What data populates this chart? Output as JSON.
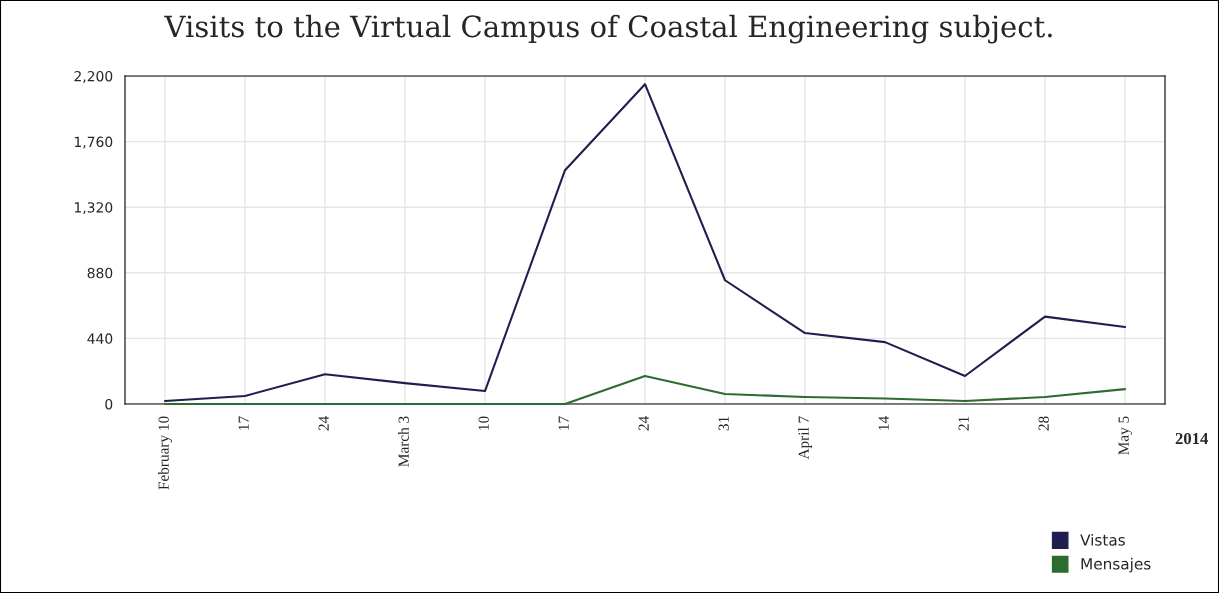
{
  "chart_data": {
    "type": "line",
    "title": "Visits to the Virtual Campus of Coastal Engineering subject.",
    "categories": [
      "February 10",
      "17",
      "24",
      "March 3",
      "10",
      "17",
      "24",
      "31",
      "April 7",
      "14",
      "21",
      "28",
      "May 5"
    ],
    "series": [
      {
        "name": "Vistas",
        "color": "#1f1f4f",
        "values": [
          20,
          54,
          200,
          140,
          87,
          1568,
          2145,
          830,
          476,
          415,
          188,
          586,
          516
        ]
      },
      {
        "name": "Mensajes",
        "color": "#2e6b2e",
        "values": [
          0,
          0,
          0,
          0,
          0,
          0,
          188,
          67,
          47,
          37,
          20,
          47,
          100
        ]
      }
    ],
    "ylim": [
      0,
      2200
    ],
    "yticks": [
      0,
      {
        "value": 440,
        "label": "440"
      },
      {
        "value": 880,
        "label": "880"
      },
      {
        "value": 1320,
        "label": "1,320"
      },
      {
        "value": 1760,
        "label": "1,760"
      },
      {
        "value": 2200,
        "label": "2,200"
      }
    ],
    "grid": true,
    "legend": "bottom right",
    "annotations": [
      "2014"
    ]
  }
}
